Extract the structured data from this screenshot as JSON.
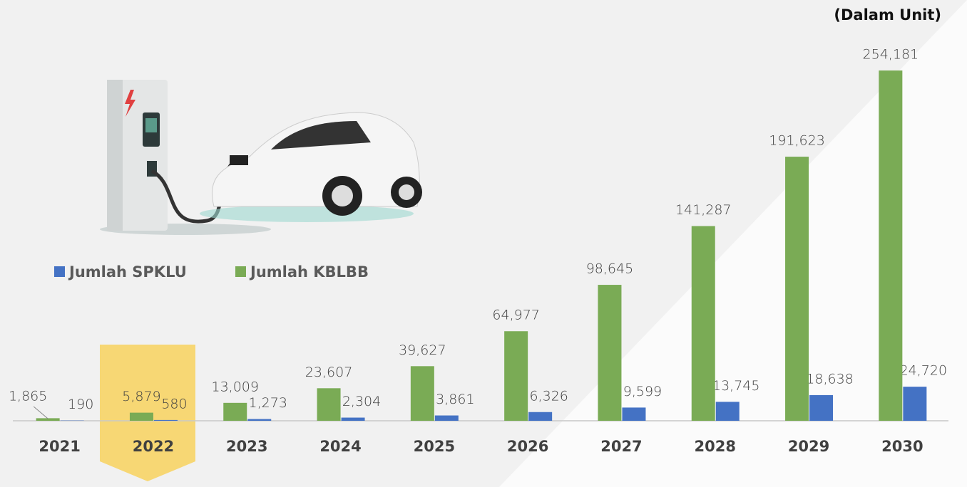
{
  "chart_data": {
    "type": "bar",
    "subtitle": "(Dalam Unit)",
    "categories": [
      "2021",
      "2022",
      "2023",
      "2024",
      "2025",
      "2026",
      "2027",
      "2028",
      "2029",
      "2030"
    ],
    "series": [
      {
        "name": "Jumlah SPKLU",
        "color": "#4472c4",
        "values": [
          190,
          580,
          1273,
          2304,
          3861,
          6326,
          9599,
          13745,
          18638,
          24720
        ],
        "value_labels": [
          "190",
          "580",
          "1,273",
          "2,304",
          "3,861",
          "6,326",
          "9,599",
          "13,745",
          "18,638",
          "24,720"
        ]
      },
      {
        "name": "Jumlah KBLBB",
        "color": "#7aab55",
        "values": [
          1865,
          5879,
          13009,
          23607,
          39627,
          64977,
          98645,
          141287,
          191623,
          254181
        ],
        "value_labels": [
          "1,865",
          "5,879",
          "13,009",
          "23,607",
          "39,627",
          "64,977",
          "98,645",
          "141,287",
          "191,623",
          "254,181"
        ]
      }
    ]
  }
}
